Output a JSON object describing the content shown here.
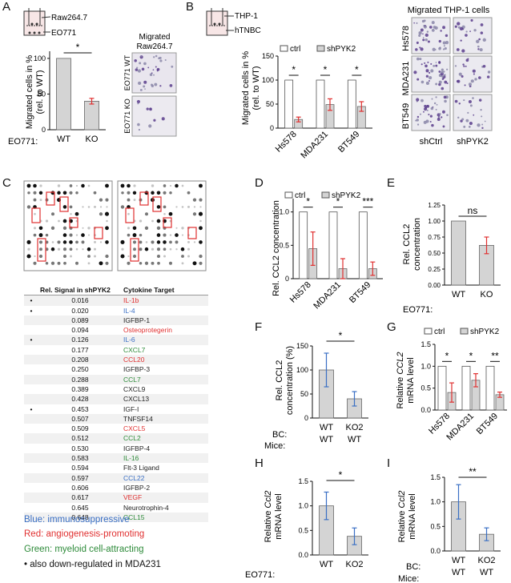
{
  "panels": {
    "A": {
      "label": "A",
      "schematic_top": "Raw264.7",
      "schematic_bottom": "EO771",
      "ylabel": "Migrated cells in %",
      "ylabel2": "(rel. to WT)",
      "cond_label": "EO771:",
      "categories": [
        "WT",
        "KO"
      ],
      "values": [
        100,
        40
      ],
      "errors": [
        0,
        4
      ],
      "yticks": [
        "0",
        "50",
        "100"
      ],
      "sig": "*",
      "img_title1": "Migrated",
      "img_title2": "Raw264.7",
      "img_rows": [
        "EO771 WT",
        "EO771 KO"
      ]
    },
    "B": {
      "label": "B",
      "schematic_top": "THP-1",
      "schematic_bottom": "hTNBC",
      "ylabel": "Migrated cells in %",
      "ylabel2": "(rel. to WT)",
      "legend": [
        "ctrl",
        "shPYK2"
      ],
      "categories": [
        "Hs578",
        "MDA231",
        "BT549"
      ],
      "ctrl": [
        100,
        100,
        100
      ],
      "sh": [
        18,
        49,
        45
      ],
      "sh_err": [
        5,
        12,
        10
      ],
      "yticks": [
        "0",
        "50",
        "100",
        "150"
      ],
      "sig": [
        "*",
        "*",
        "*"
      ],
      "img_title": "Migrated THP-1 cells",
      "img_rows": [
        "Hs578",
        "MDA231",
        "BT549"
      ],
      "img_cols": [
        "shCtrl",
        "shPYK2"
      ]
    },
    "C": {
      "label": "C",
      "table_headers": [
        "Rel. Signal in shPYK2",
        "Cytokine Target"
      ],
      "rows": [
        {
          "dot": "•",
          "value": "0.016",
          "target": "IL-1b",
          "color": "#e03030"
        },
        {
          "dot": "•",
          "value": "0.020",
          "target": "IL-4",
          "color": "#3a6fc4"
        },
        {
          "dot": "",
          "value": "0.089",
          "target": "IGFBP-1",
          "color": "#222222"
        },
        {
          "dot": "",
          "value": "0.094",
          "target": "Osteoprotegerin",
          "color": "#e03030"
        },
        {
          "dot": "•",
          "value": "0.126",
          "target": "IL-6",
          "color": "#3a6fc4"
        },
        {
          "dot": "",
          "value": "0.177",
          "target": "CXCL7",
          "color": "#2e8b3a"
        },
        {
          "dot": "",
          "value": "0.208",
          "target": "CCL20",
          "color": "#e03030"
        },
        {
          "dot": "",
          "value": "0.250",
          "target": "IGFBP-3",
          "color": "#222222"
        },
        {
          "dot": "",
          "value": "0.288",
          "target": "CCL7",
          "color": "#2e8b3a"
        },
        {
          "dot": "",
          "value": "0.389",
          "target": "CXCL9",
          "color": "#222222"
        },
        {
          "dot": "",
          "value": "0.428",
          "target": "CXCL13",
          "color": "#222222"
        },
        {
          "dot": "•",
          "value": "0.453",
          "target": "IGF-I",
          "color": "#222222"
        },
        {
          "dot": "",
          "value": "0.507",
          "target": "TNFSF14",
          "color": "#222222"
        },
        {
          "dot": "",
          "value": "0.509",
          "target": "CXCL5",
          "color": "#e03030"
        },
        {
          "dot": "",
          "value": "0.512",
          "target": "CCL2",
          "color": "#2e8b3a"
        },
        {
          "dot": "",
          "value": "0.530",
          "target": "IGFBP-4",
          "color": "#222222"
        },
        {
          "dot": "",
          "value": "0.583",
          "target": "IL-16",
          "color": "#2e8b3a"
        },
        {
          "dot": "",
          "value": "0.594",
          "target": "Flt-3 Ligand",
          "color": "#222222"
        },
        {
          "dot": "",
          "value": "0.597",
          "target": "CCL22",
          "color": "#3a6fc4"
        },
        {
          "dot": "",
          "value": "0.606",
          "target": "IGFBP-2",
          "color": "#222222"
        },
        {
          "dot": "",
          "value": "0.617",
          "target": "VEGF",
          "color": "#e03030"
        },
        {
          "dot": "",
          "value": "0.645",
          "target": "Neurotrophin-4",
          "color": "#222222"
        },
        {
          "dot": "",
          "value": "0.648",
          "target": "CCL15",
          "color": "#2e8b3a"
        }
      ],
      "legend_blue": "Blue: immunosuppressive",
      "legend_red": "Red: angiogenesis-promoting",
      "legend_green": "Green: myeloid cell-attracting",
      "legend_dot": "• also down-regulated in MDA231"
    },
    "D": {
      "label": "D",
      "ylabel": "Rel. CCL2 concentration",
      "legend": [
        "ctrl",
        "shPYK2"
      ],
      "categories": [
        "Hs578",
        "MDA231",
        "BT549"
      ],
      "ctrl": [
        1.0,
        1.0,
        1.0
      ],
      "sh": [
        0.45,
        0.15,
        0.15
      ],
      "sh_err": [
        0.25,
        0.15,
        0.1
      ],
      "yticks": [
        "0",
        "0.5",
        "1.0"
      ],
      "sig": [
        "*",
        "*",
        "***"
      ]
    },
    "E": {
      "label": "E",
      "ylabel1": "Rel. CCL2",
      "ylabel2": "concentration",
      "cond_label": "EO771:",
      "categories": [
        "WT",
        "KO"
      ],
      "values": [
        1.0,
        0.62
      ],
      "errors": [
        0,
        0.13
      ],
      "yticks": [
        "0.00",
        "0.25",
        "0.50",
        "0.75",
        "1.00",
        "1.25"
      ],
      "sig": "ns"
    },
    "F": {
      "label": "F",
      "ylabel1": "Rel. CCL2",
      "ylabel2": "concentration (%)",
      "row1_label": "BC:",
      "row2_label": "Mice:",
      "row1": [
        "WT",
        "KO2"
      ],
      "row2": [
        "WT",
        "WT"
      ],
      "values": [
        100,
        40
      ],
      "errors": [
        35,
        15
      ],
      "yticks": [
        "0",
        "50",
        "100",
        "150"
      ],
      "sig": "*"
    },
    "G": {
      "label": "G",
      "ylabel1": "Relative",
      "ylabel_gene": "CCL2",
      "ylabel2": "mRNA level",
      "legend": [
        "ctrl",
        "shPYK2"
      ],
      "categories": [
        "Hs578",
        "MDA231",
        "BT549"
      ],
      "ctrl": [
        1.0,
        1.0,
        1.0
      ],
      "sh": [
        0.4,
        0.68,
        0.35
      ],
      "sh_err": [
        0.22,
        0.15,
        0.06
      ],
      "yticks": [
        "0.0",
        "0.5",
        "1.0",
        "1.5"
      ],
      "sig": [
        "*",
        "*",
        "**"
      ]
    },
    "H": {
      "label": "H",
      "ylabel1": "Relative",
      "ylabel_gene": "Ccl2",
      "ylabel2": "mRNA level",
      "cond_label": "EO771:",
      "categories": [
        "WT",
        "KO2"
      ],
      "values": [
        1.0,
        0.38
      ],
      "errors": [
        0.28,
        0.17
      ],
      "yticks": [
        "0.0",
        "0.5",
        "1.0",
        "1.5"
      ],
      "sig": "*"
    },
    "I": {
      "label": "I",
      "ylabel1": "Relative",
      "ylabel_gene": "Ccl2",
      "ylabel2": "mRNA level",
      "row1_label": "BC:",
      "row2_label": "Mice:",
      "row1": [
        "WT",
        "KO2"
      ],
      "row2": [
        "WT",
        "WT"
      ],
      "values": [
        1.0,
        0.34
      ],
      "errors": [
        0.35,
        0.13
      ],
      "yticks": [
        "0.0",
        "0.5",
        "1.0",
        "1.5"
      ],
      "sig": "**"
    }
  },
  "colors": {
    "bar_gray": "#d4d4d4",
    "err_blue": "#3a6fc4",
    "err_red": "#e03030",
    "blue": "#3a6fc4",
    "red": "#e03030",
    "green": "#2e8b3a"
  },
  "chart_data": [
    {
      "type": "bar",
      "panel": "A",
      "title": "",
      "categories": [
        "WT",
        "KO"
      ],
      "values": [
        100,
        40
      ],
      "errors": [
        0,
        4
      ],
      "ylabel": "Migrated cells in % (rel. to WT)",
      "ylim": [
        0,
        110
      ]
    },
    {
      "type": "bar",
      "panel": "B",
      "categories": [
        "Hs578",
        "MDA231",
        "BT549"
      ],
      "series": [
        {
          "name": "ctrl",
          "values": [
            100,
            100,
            100
          ]
        },
        {
          "name": "shPYK2",
          "values": [
            18,
            49,
            45
          ]
        }
      ],
      "ylabel": "Migrated cells in % (rel. to WT)",
      "ylim": [
        0,
        150
      ]
    },
    {
      "type": "bar",
      "panel": "D",
      "categories": [
        "Hs578",
        "MDA231",
        "BT549"
      ],
      "series": [
        {
          "name": "ctrl",
          "values": [
            1.0,
            1.0,
            1.0
          ]
        },
        {
          "name": "shPYK2",
          "values": [
            0.45,
            0.15,
            0.15
          ]
        }
      ],
      "ylabel": "Rel. CCL2 concentration",
      "ylim": [
        0,
        1.2
      ]
    },
    {
      "type": "bar",
      "panel": "E",
      "categories": [
        "WT",
        "KO"
      ],
      "values": [
        1.0,
        0.62
      ],
      "ylabel": "Rel. CCL2 concentration",
      "ylim": [
        0,
        1.25
      ]
    },
    {
      "type": "bar",
      "panel": "F",
      "categories": [
        "WT",
        "KO2"
      ],
      "values": [
        100,
        40
      ],
      "ylabel": "Rel. CCL2 concentration (%)",
      "ylim": [
        0,
        150
      ]
    },
    {
      "type": "bar",
      "panel": "G",
      "categories": [
        "Hs578",
        "MDA231",
        "BT549"
      ],
      "series": [
        {
          "name": "ctrl",
          "values": [
            1.0,
            1.0,
            1.0
          ]
        },
        {
          "name": "shPYK2",
          "values": [
            0.4,
            0.68,
            0.35
          ]
        }
      ],
      "ylabel": "Relative CCL2 mRNA level",
      "ylim": [
        0,
        1.5
      ]
    },
    {
      "type": "bar",
      "panel": "H",
      "categories": [
        "WT",
        "KO2"
      ],
      "values": [
        1.0,
        0.38
      ],
      "ylabel": "Relative Ccl2 mRNA level",
      "ylim": [
        0,
        1.5
      ]
    },
    {
      "type": "bar",
      "panel": "I",
      "categories": [
        "WT",
        "KO2"
      ],
      "values": [
        1.0,
        0.34
      ],
      "ylabel": "Relative Ccl2 mRNA level",
      "ylim": [
        0,
        1.5
      ]
    }
  ]
}
